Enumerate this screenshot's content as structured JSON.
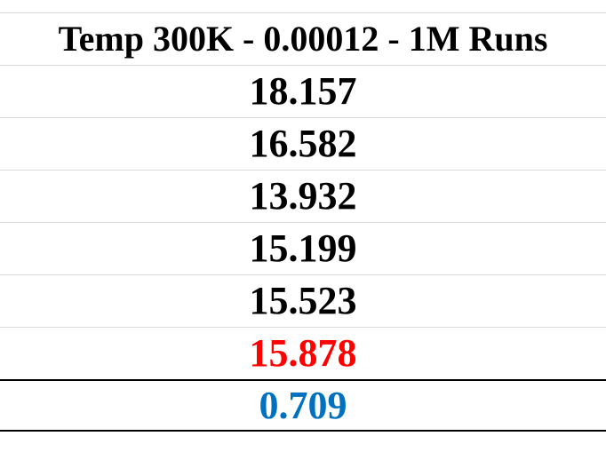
{
  "table": {
    "header": "Temp 300K - 0.00012 - 1M Runs",
    "values": [
      "18.157",
      "16.582",
      "13.932",
      "15.199",
      "15.523"
    ],
    "average": "15.878",
    "deviation": "0.709"
  },
  "colors": {
    "text": "#000000",
    "average": "#ff0000",
    "deviation": "#0070c0",
    "gridline": "#d9d9d9",
    "border": "#000000"
  }
}
